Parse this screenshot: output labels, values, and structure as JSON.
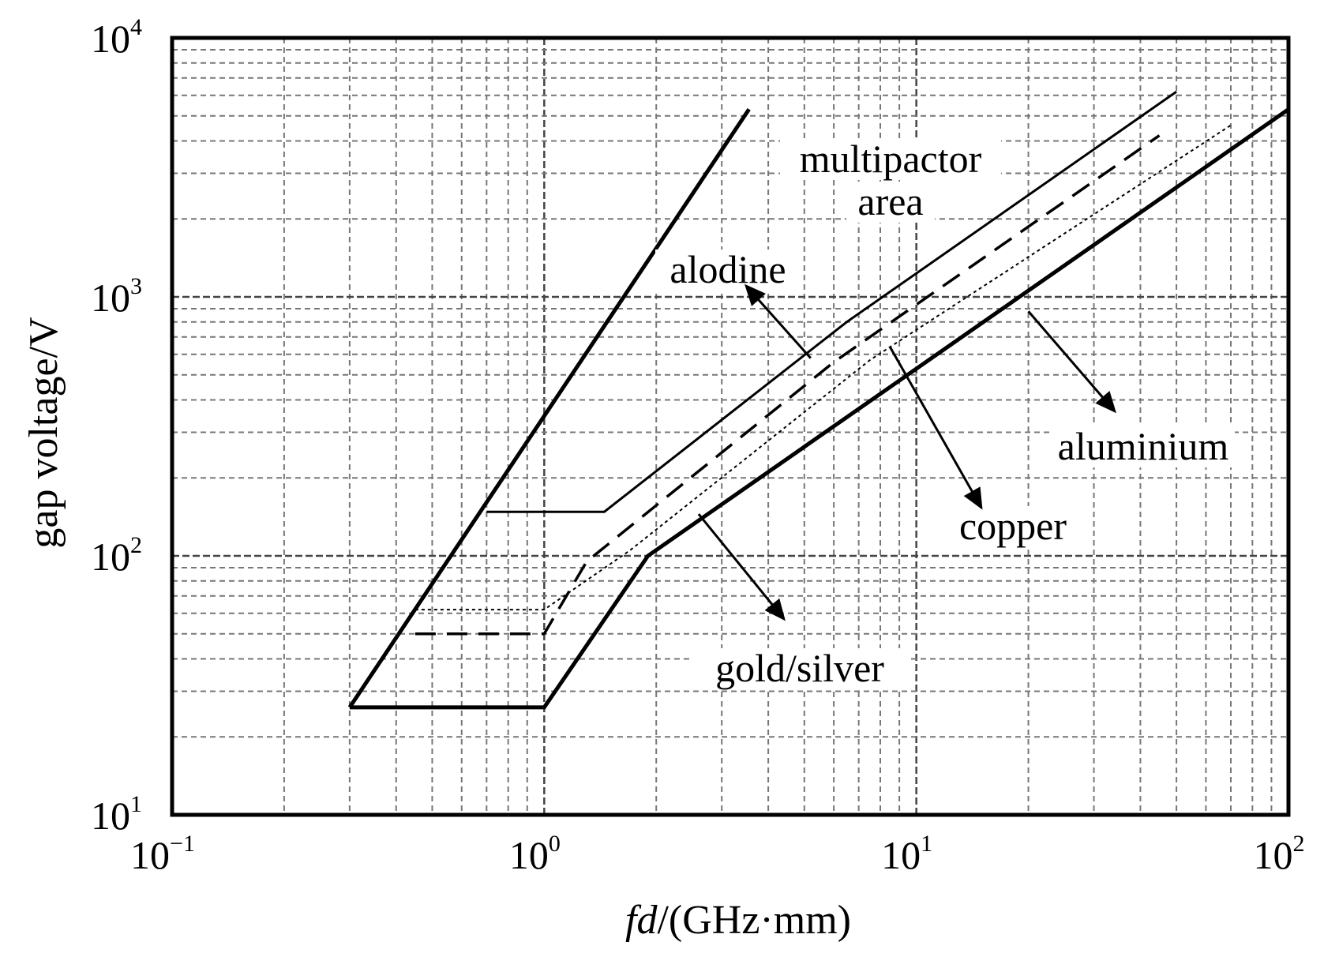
{
  "chart_data": {
    "type": "line",
    "xlabel_italic": "fd",
    "xlabel_rest": "/(GHz·mm)",
    "ylabel": "gap voltage/V",
    "xscale": "log",
    "yscale": "log",
    "xlim": [
      0.1,
      100
    ],
    "ylim": [
      10,
      10000
    ],
    "grid": true,
    "x_ticks": [
      {
        "base": "10",
        "exp": "−1"
      },
      {
        "base": "10",
        "exp": "0"
      },
      {
        "base": "10",
        "exp": "1"
      },
      {
        "base": "10",
        "exp": "2"
      }
    ],
    "y_ticks": [
      {
        "base": "10",
        "exp": "1"
      },
      {
        "base": "10",
        "exp": "2"
      },
      {
        "base": "10",
        "exp": "3"
      },
      {
        "base": "10",
        "exp": "4"
      }
    ],
    "series": [
      {
        "style": "thick",
        "x": [
          0.3,
          3.55
        ],
        "y": [
          26,
          5300
        ]
      },
      {
        "style": "thick",
        "x": [
          0.3,
          1.0,
          1.9,
          100
        ],
        "y": [
          26,
          26,
          100,
          5300
        ]
      },
      {
        "style": "thin",
        "x": [
          0.7,
          1.45,
          6.5,
          50
        ],
        "y": [
          148,
          148,
          800,
          6200
        ]
      },
      {
        "style": "dashed",
        "x": [
          0.45,
          1.0,
          1.3,
          6.0,
          45
        ],
        "y": [
          50,
          50,
          95,
          560,
          4200
        ]
      },
      {
        "style": "dotted",
        "x": [
          0.45,
          1.0,
          1.7,
          7.5,
          70
        ],
        "y": [
          62,
          62,
          105,
          570,
          4600
        ]
      }
    ],
    "annotations": [
      {
        "lines": [
          "multipactor",
          "area"
        ]
      },
      {
        "lines": [
          "alodine"
        ],
        "arrow_to": {
          "x": 5.2,
          "y": 580
        }
      },
      {
        "lines": [
          "aluminium"
        ],
        "arrow_to": {
          "x": 20,
          "y": 880
        }
      },
      {
        "lines": [
          "copper"
        ],
        "arrow_to": {
          "x": 8.5,
          "y": 640
        }
      },
      {
        "lines": [
          "gold/silver"
        ],
        "arrow_to": {
          "x": 2.6,
          "y": 145
        }
      }
    ]
  }
}
